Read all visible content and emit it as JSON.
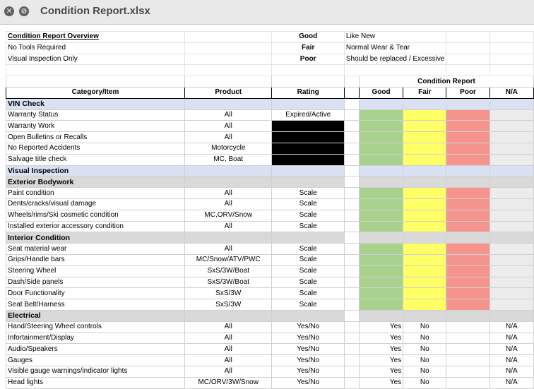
{
  "window": {
    "title": "Condition Report.xlsx",
    "close_glyph": "✕",
    "stop_glyph": "⊘"
  },
  "overview": {
    "title": "Condition Report Overview",
    "lines": [
      "No Tools Required",
      "Visual Inspection Only"
    ],
    "ratings": [
      {
        "label": "Good",
        "desc": "Like New"
      },
      {
        "label": "Fair",
        "desc": "Normal Wear & Tear"
      },
      {
        "label": "Poor",
        "desc": "Should be replaced / Excessive wear & tear"
      }
    ]
  },
  "header": {
    "condition_report": "Condition Report",
    "category": "Category/Item",
    "product": "Product",
    "rating": "Rating",
    "good": "Good",
    "fair": "Fair",
    "poor": "Poor",
    "na": "N/A"
  },
  "sections": [
    {
      "title": "VIN Check",
      "style": "blue",
      "items": [
        {
          "name": "Warranty Status",
          "product": "All",
          "rating": "Expired/Active",
          "mode": "color"
        },
        {
          "name": "Warranty Work",
          "product": "All",
          "rating": "",
          "mode": "color",
          "black": true
        },
        {
          "name": "Open Bulletins or Recalls",
          "product": "All",
          "rating": "",
          "mode": "color",
          "black": true
        },
        {
          "name": "No Reported Accidents",
          "product": "Motorcycle",
          "rating": "",
          "mode": "color",
          "black": true
        },
        {
          "name": "Salvage title check",
          "product": "MC, Boat",
          "rating": "",
          "mode": "color",
          "black": true
        }
      ]
    },
    {
      "title": "Visual Inspection",
      "style": "blue",
      "items": []
    },
    {
      "title": "Exterior Bodywork",
      "style": "gray",
      "items": [
        {
          "name": "Paint condition",
          "product": "All",
          "rating": "Scale",
          "mode": "color"
        },
        {
          "name": "Dents/cracks/visual damage",
          "product": "All",
          "rating": "Scale",
          "mode": "color"
        },
        {
          "name": "Wheels/rims/Ski cosmetic condition",
          "product": "MC,ORV/Snow",
          "rating": "Scale",
          "mode": "color"
        },
        {
          "name": "Installed exterior accessory condition",
          "product": "All",
          "rating": "Scale",
          "mode": "color"
        }
      ]
    },
    {
      "title": "Interior Condition",
      "style": "gray",
      "items": [
        {
          "name": "Seat material wear",
          "product": "All",
          "rating": "Scale",
          "mode": "color"
        },
        {
          "name": "Grips/Handle bars",
          "product": "MC/Snow/ATV/PWC",
          "rating": "Scale",
          "mode": "color"
        },
        {
          "name": "Steering Wheel",
          "product": "SxS/3W/Boat",
          "rating": "Scale",
          "mode": "color"
        },
        {
          "name": "Dash/Side panels",
          "product": "SxS/3W/Boat",
          "rating": "Scale",
          "mode": "color"
        },
        {
          "name": "Door Functionality",
          "product": "SxS/3W",
          "rating": "Scale",
          "mode": "color"
        },
        {
          "name": "Seat Belt/Harness",
          "product": "SxS/3W",
          "rating": "Scale",
          "mode": "color"
        }
      ]
    },
    {
      "title": "Electrical",
      "style": "gray",
      "items": [
        {
          "name": "Hand/Steering Wheel controls",
          "product": "All",
          "rating": "Yes/No",
          "mode": "text",
          "good": "Yes",
          "fair": "No",
          "na": "N/A"
        },
        {
          "name": "Infortainment/Display",
          "product": "All",
          "rating": "Yes/No",
          "mode": "text",
          "good": "Yes",
          "fair": "No",
          "na": "N/A"
        },
        {
          "name": "Audio/Speakers",
          "product": "All",
          "rating": "Yes/No",
          "mode": "text",
          "good": "Yes",
          "fair": "No",
          "na": "N/A"
        },
        {
          "name": "Gauges",
          "product": "All",
          "rating": "Yes/No",
          "mode": "text",
          "good": "Yes",
          "fair": "No",
          "na": "N/A"
        },
        {
          "name": "Visible gauge warnings/indicator lights",
          "product": "All",
          "rating": "Yes/No",
          "mode": "text",
          "good": "Yes",
          "fair": "No",
          "na": "N/A"
        },
        {
          "name": "Head lights",
          "product": "MC/ORV/3W/Snow",
          "rating": "Yes/No",
          "mode": "text",
          "good": "Yes",
          "fair": "No",
          "na": "N/A"
        }
      ]
    }
  ],
  "colors": {
    "good": "#a9d18e",
    "fair": "#ffff66",
    "poor": "#f4948c",
    "na": "#ececec",
    "section_blue": "#d9e1f2",
    "section_gray": "#d9d9d9"
  }
}
